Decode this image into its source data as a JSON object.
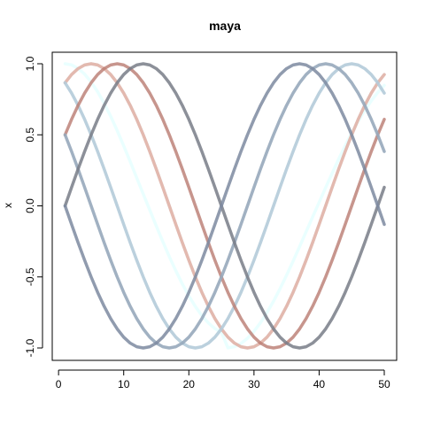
{
  "chart_data": {
    "type": "line",
    "title": "maya",
    "xlabel": "",
    "ylabel": "x",
    "xlim": [
      1,
      50
    ],
    "ylim": [
      -1,
      1
    ],
    "x_ticks": [
      0,
      10,
      20,
      30,
      40,
      50
    ],
    "y_ticks": [
      -1.0,
      -0.5,
      0.0,
      0.5,
      1.0
    ],
    "x_tick_labels": [
      "0",
      "10",
      "20",
      "30",
      "40",
      "50"
    ],
    "y_tick_labels": [
      "-1.0",
      "-0.5",
      "0.0",
      "0.5",
      "1.0"
    ],
    "grid": false,
    "legend": "none",
    "x": [
      1,
      2,
      3,
      4,
      5,
      6,
      7,
      8,
      9,
      10,
      11,
      12,
      13,
      14,
      15,
      16,
      17,
      18,
      19,
      20,
      21,
      22,
      23,
      24,
      25,
      26,
      27,
      28,
      29,
      30,
      31,
      32,
      33,
      34,
      35,
      36,
      37,
      38,
      39,
      40,
      41,
      42,
      43,
      44,
      45,
      46,
      47,
      48,
      49,
      50
    ],
    "series": [
      {
        "color": "#e6ffff",
        "opacity": 0.85,
        "values": [
          1.0,
          0.9918,
          0.9672,
          0.9269,
          0.8716,
          0.8028,
          0.7216,
          0.63,
          0.5296,
          0.4226,
          0.3111,
          0.1971,
          0.0832,
          -0.0292,
          -0.1415,
          -0.2513,
          -0.3568,
          -0.4567,
          -0.5496,
          -0.6339,
          -0.7084,
          -0.7722,
          -0.8241,
          -0.8635,
          -0.89,
          -0.9994,
          -0.9911,
          -0.9683,
          -0.9319,
          -0.8829,
          -0.8221,
          -0.751,
          -0.6707,
          -0.5827,
          -0.4883,
          -0.3892,
          -0.2868,
          -0.1827,
          -0.0784,
          0.0246,
          0.1279,
          0.2299,
          0.3289,
          0.4236,
          0.5128,
          0.5957,
          0.6713,
          0.7389,
          0.798,
          0.848
        ]
      },
      {
        "color": "#c9e6f0",
        "opacity": 0.85,
        "values": [
          0.866,
          0.9239,
          0.9659,
          0.9914,
          1.0,
          0.9914,
          0.9659,
          0.9239,
          0.866,
          0.7934,
          0.7071,
          0.6088,
          0.5,
          0.3827,
          0.2588,
          0.1305,
          0.0,
          -0.1305,
          -0.2588,
          -0.3827,
          -0.5,
          -0.6088,
          -0.7071,
          -0.7934,
          -0.866,
          -0.9239,
          -0.9659,
          -0.9914,
          -1.0,
          -0.9914,
          -0.9659,
          -0.9239,
          -0.866,
          -0.7934,
          -0.7071,
          -0.6088,
          -0.5,
          -0.3827,
          -0.2588,
          -0.1305,
          0.0,
          0.1305,
          0.2588,
          0.3827,
          0.5,
          0.6088,
          0.7071,
          0.7934,
          0.866,
          0.9239
        ]
      },
      {
        "color": "#e8a898",
        "opacity": 0.75,
        "values": [
          0.866,
          0.9239,
          0.9659,
          0.9914,
          1.0,
          0.9914,
          0.9659,
          0.9239,
          0.866,
          0.7934,
          0.7071,
          0.6088,
          0.5,
          0.3827,
          0.2588,
          0.1305,
          0.0,
          -0.1305,
          -0.2588,
          -0.3827,
          -0.5,
          -0.6088,
          -0.7071,
          -0.7934,
          -0.866,
          -0.9239,
          -0.9659,
          -0.9914,
          -1.0,
          -0.9914,
          -0.9659,
          -0.9239,
          -0.866,
          -0.7934,
          -0.7071,
          -0.6088,
          -0.5,
          -0.3827,
          -0.2588,
          -0.1305,
          0.0,
          0.1305,
          0.2588,
          0.3827,
          0.5,
          0.6088,
          0.7071,
          0.7934,
          0.866,
          0.9239
        ]
      },
      {
        "color": "#b4cbd9",
        "opacity": 0.9,
        "values": [
          0.866,
          0.7934,
          0.7071,
          0.6088,
          0.5,
          0.3827,
          0.2588,
          0.1305,
          0.0,
          -0.1305,
          -0.2588,
          -0.3827,
          -0.5,
          -0.6088,
          -0.7071,
          -0.7934,
          -0.866,
          -0.9239,
          -0.9659,
          -0.9914,
          -1.0,
          -0.9914,
          -0.9659,
          -0.9239,
          -0.866,
          -0.7934,
          -0.7071,
          -0.6088,
          -0.5,
          -0.3827,
          -0.2588,
          -0.1305,
          0.0,
          0.1305,
          0.2588,
          0.3827,
          0.5,
          0.6088,
          0.7071,
          0.7934,
          0.866,
          0.9239,
          0.9659,
          0.9914,
          1.0,
          0.9914,
          0.9659,
          0.9239,
          0.866,
          0.7934
        ]
      },
      {
        "color": "#b97a70",
        "opacity": 0.8,
        "values": [
          0.5,
          0.6088,
          0.7071,
          0.7934,
          0.866,
          0.9239,
          0.9659,
          0.9914,
          1.0,
          0.9914,
          0.9659,
          0.9239,
          0.866,
          0.7934,
          0.7071,
          0.6088,
          0.5,
          0.3827,
          0.2588,
          0.1305,
          0.0,
          -0.1305,
          -0.2588,
          -0.3827,
          -0.5,
          -0.6088,
          -0.7071,
          -0.7934,
          -0.866,
          -0.9239,
          -0.9659,
          -0.9914,
          -1.0,
          -0.9914,
          -0.9659,
          -0.9239,
          -0.866,
          -0.7934,
          -0.7071,
          -0.6088,
          -0.5,
          -0.3827,
          -0.2588,
          -0.1305,
          0.0,
          0.1305,
          0.2588,
          0.3827,
          0.5,
          0.6088
        ]
      },
      {
        "color": "#97a8bb",
        "opacity": 0.9,
        "values": [
          0.5,
          0.3827,
          0.2588,
          0.1305,
          0.0,
          -0.1305,
          -0.2588,
          -0.3827,
          -0.5,
          -0.6088,
          -0.7071,
          -0.7934,
          -0.866,
          -0.9239,
          -0.9659,
          -0.9914,
          -1.0,
          -0.9914,
          -0.9659,
          -0.9239,
          -0.866,
          -0.7934,
          -0.7071,
          -0.6088,
          -0.5,
          -0.3827,
          -0.2588,
          -0.1305,
          0.0,
          0.1305,
          0.2588,
          0.3827,
          0.5,
          0.6088,
          0.7071,
          0.7934,
          0.866,
          0.9239,
          0.9659,
          0.9914,
          1.0,
          0.9914,
          0.9659,
          0.9239,
          0.866,
          0.7934,
          0.7071,
          0.6088,
          0.5,
          0.3827
        ]
      },
      {
        "color": "#787d87",
        "opacity": 0.85,
        "values": [
          0.0,
          0.1305,
          0.2588,
          0.3827,
          0.5,
          0.6088,
          0.7071,
          0.7934,
          0.866,
          0.9239,
          0.9659,
          0.9914,
          1.0,
          0.9914,
          0.9659,
          0.9239,
          0.866,
          0.7934,
          0.7071,
          0.6088,
          0.5,
          0.3827,
          0.2588,
          0.1305,
          0.0,
          -0.1305,
          -0.2588,
          -0.3827,
          -0.5,
          -0.6088,
          -0.7071,
          -0.7934,
          -0.866,
          -0.9239,
          -0.9659,
          -0.9914,
          -1.0,
          -0.9914,
          -0.9659,
          -0.9239,
          -0.866,
          -0.7934,
          -0.7071,
          -0.6088,
          -0.5,
          -0.3827,
          -0.2588,
          -0.1305,
          0.0,
          0.1305
        ]
      },
      {
        "color": "#7d8aa0",
        "opacity": 0.85,
        "values": [
          0.0,
          -0.1305,
          -0.2588,
          -0.3827,
          -0.5,
          -0.6088,
          -0.7071,
          -0.7934,
          -0.866,
          -0.9239,
          -0.9659,
          -0.9914,
          -1.0,
          -0.9914,
          -0.9659,
          -0.9239,
          -0.866,
          -0.7934,
          -0.7071,
          -0.6088,
          -0.5,
          -0.3827,
          -0.2588,
          -0.1305,
          0.0,
          0.1305,
          0.2588,
          0.3827,
          0.5,
          0.6088,
          0.7071,
          0.7934,
          0.866,
          0.9239,
          0.9659,
          0.9914,
          1.0,
          0.9914,
          0.9659,
          0.9239,
          0.866,
          0.7934,
          0.7071,
          0.6088,
          0.5,
          0.3827,
          0.2588,
          0.1305,
          0.0,
          -0.1305
        ]
      }
    ]
  }
}
